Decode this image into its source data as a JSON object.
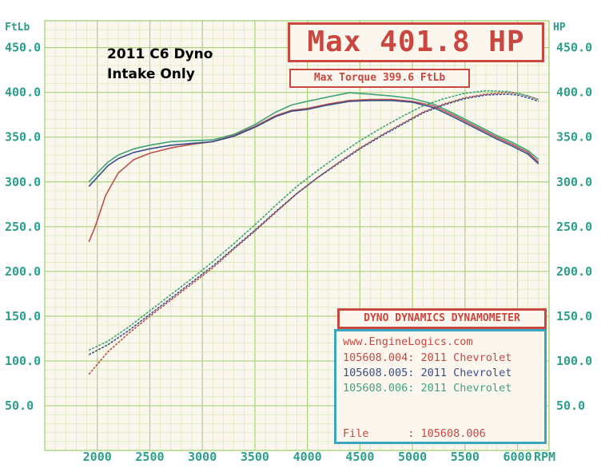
{
  "chart_data": {
    "type": "line",
    "title": "Max 401.8 HP",
    "subtitle": "Max Torque 399.6 FtLb",
    "annotation": [
      "2011 C6 Dyno",
      "Intake Only"
    ],
    "xlabel": "RPM",
    "ylabel_left": "FtLb",
    "ylabel_right": "HP",
    "xlim": [
      1500,
      6300
    ],
    "ylim": [
      0,
      480
    ],
    "xticks": [
      "2000",
      "2500",
      "3000",
      "3500",
      "4000",
      "4500",
      "5000",
      "5500",
      "6000"
    ],
    "yticks": [
      "50.0",
      "100.0",
      "150.0",
      "200.0",
      "250.0",
      "300.0",
      "350.0",
      "400.0",
      "450.0"
    ],
    "grid": true,
    "legend_position": "bottom-right",
    "series": [
      {
        "name": "105608.004: 2011 Chevrolet",
        "metric": "torque",
        "color": "#c0504d",
        "x": [
          1920,
          1980,
          2080,
          2200,
          2350,
          2500,
          2700,
          2900,
          3100,
          3300,
          3500,
          3700,
          3850,
          4000,
          4200,
          4400,
          4600,
          4800,
          5000,
          5200,
          5400,
          5600,
          5800,
          5950,
          6100,
          6200
        ],
        "y": [
          233,
          250,
          285,
          310,
          325,
          332,
          338,
          342,
          345,
          352,
          362,
          374,
          380,
          382,
          387,
          391,
          392,
          392,
          390,
          385,
          374,
          362,
          350,
          342,
          333,
          322
        ]
      },
      {
        "name": "105608.005: 2011 Chevrolet",
        "metric": "torque",
        "color": "#3a4f8c",
        "x": [
          1920,
          2000,
          2100,
          2200,
          2350,
          2500,
          2700,
          2900,
          3100,
          3300,
          3500,
          3700,
          3850,
          4000,
          4200,
          4400,
          4600,
          4800,
          5000,
          5200,
          5400,
          5600,
          5800,
          5950,
          6100,
          6200
        ],
        "y": [
          295,
          305,
          318,
          326,
          333,
          337,
          341,
          343,
          345,
          351,
          361,
          373,
          379,
          381,
          386,
          390,
          391,
          391,
          389,
          383,
          372,
          360,
          348,
          340,
          331,
          320
        ]
      },
      {
        "name": "105608.006: 2011 Chevrolet",
        "metric": "torque",
        "color": "#3fa37a",
        "x": [
          1920,
          2000,
          2100,
          2200,
          2350,
          2500,
          2700,
          2900,
          3100,
          3300,
          3500,
          3700,
          3850,
          4000,
          4200,
          4400,
          4600,
          4800,
          5000,
          5200,
          5400,
          5600,
          5800,
          5950,
          6100,
          6200
        ],
        "y": [
          300,
          310,
          322,
          330,
          337,
          341,
          345,
          346,
          347,
          353,
          364,
          378,
          386,
          390,
          395,
          399.6,
          398,
          396,
          393,
          387,
          376,
          364,
          352,
          344,
          335,
          325
        ]
      },
      {
        "name": "105608.004: 2011 Chevrolet",
        "metric": "power",
        "color": "#c0504d",
        "x": [
          1920,
          2100,
          2300,
          2500,
          2700,
          2900,
          3100,
          3300,
          3500,
          3700,
          3900,
          4100,
          4300,
          4500,
          4700,
          4900,
          5100,
          5300,
          5500,
          5700,
          5900,
          6000,
          6100,
          6200
        ],
        "y": [
          85,
          110,
          131,
          150,
          168,
          186,
          204,
          225,
          245,
          266,
          287,
          305,
          322,
          338,
          352,
          365,
          378,
          387,
          394,
          398,
          400,
          399,
          396,
          392
        ]
      },
      {
        "name": "105608.005: 2011 Chevrolet",
        "metric": "power",
        "color": "#3a4f8c",
        "x": [
          1920,
          2100,
          2300,
          2500,
          2700,
          2900,
          3100,
          3300,
          3500,
          3700,
          3900,
          4100,
          4300,
          4500,
          4700,
          4900,
          5100,
          5300,
          5500,
          5700,
          5900,
          6000,
          6100,
          6200
        ],
        "y": [
          107,
          118,
          134,
          152,
          170,
          188,
          206,
          226,
          246,
          267,
          287,
          305,
          321,
          337,
          351,
          364,
          377,
          386,
          393,
          397,
          398,
          397,
          394,
          390
        ]
      },
      {
        "name": "105608.006: 2011 Chevrolet",
        "metric": "power",
        "color": "#3fa37a",
        "x": [
          1920,
          2100,
          2300,
          2500,
          2700,
          2900,
          3100,
          3300,
          3500,
          3700,
          3900,
          4100,
          4300,
          4500,
          4700,
          4900,
          5100,
          5300,
          5500,
          5700,
          5900,
          6000,
          6100,
          6200
        ],
        "y": [
          112,
          122,
          138,
          156,
          174,
          192,
          211,
          231,
          252,
          274,
          295,
          313,
          330,
          346,
          360,
          373,
          385,
          393,
          399,
          401.8,
          401,
          399,
          396,
          392
        ]
      }
    ]
  },
  "labels": {
    "max_hp": "Max 401.8 HP",
    "max_torque": "Max Torque 399.6 FtLb",
    "note_line1": "2011 C6 Dyno",
    "note_line2": "Intake Only",
    "unit_left": "FtLb",
    "unit_right": "HP",
    "unit_x": "RPM",
    "dynamometer_title": "DYNO DYNAMICS DYNAMOMETER",
    "website": "www.EngineLogics.com",
    "run1": "105608.004: 2011 Chevrolet",
    "run2": "105608.005: 2011 Chevrolet",
    "run3": "105608.006: 2011 Chevrolet",
    "file_line": "File      : 105608.006"
  },
  "colors": {
    "background": "#fbf7ef",
    "grid": "#b9d88a",
    "axis_text": "#2e9e8c",
    "title_red": "#c9473f",
    "legend_border": "#3aa6c2"
  }
}
